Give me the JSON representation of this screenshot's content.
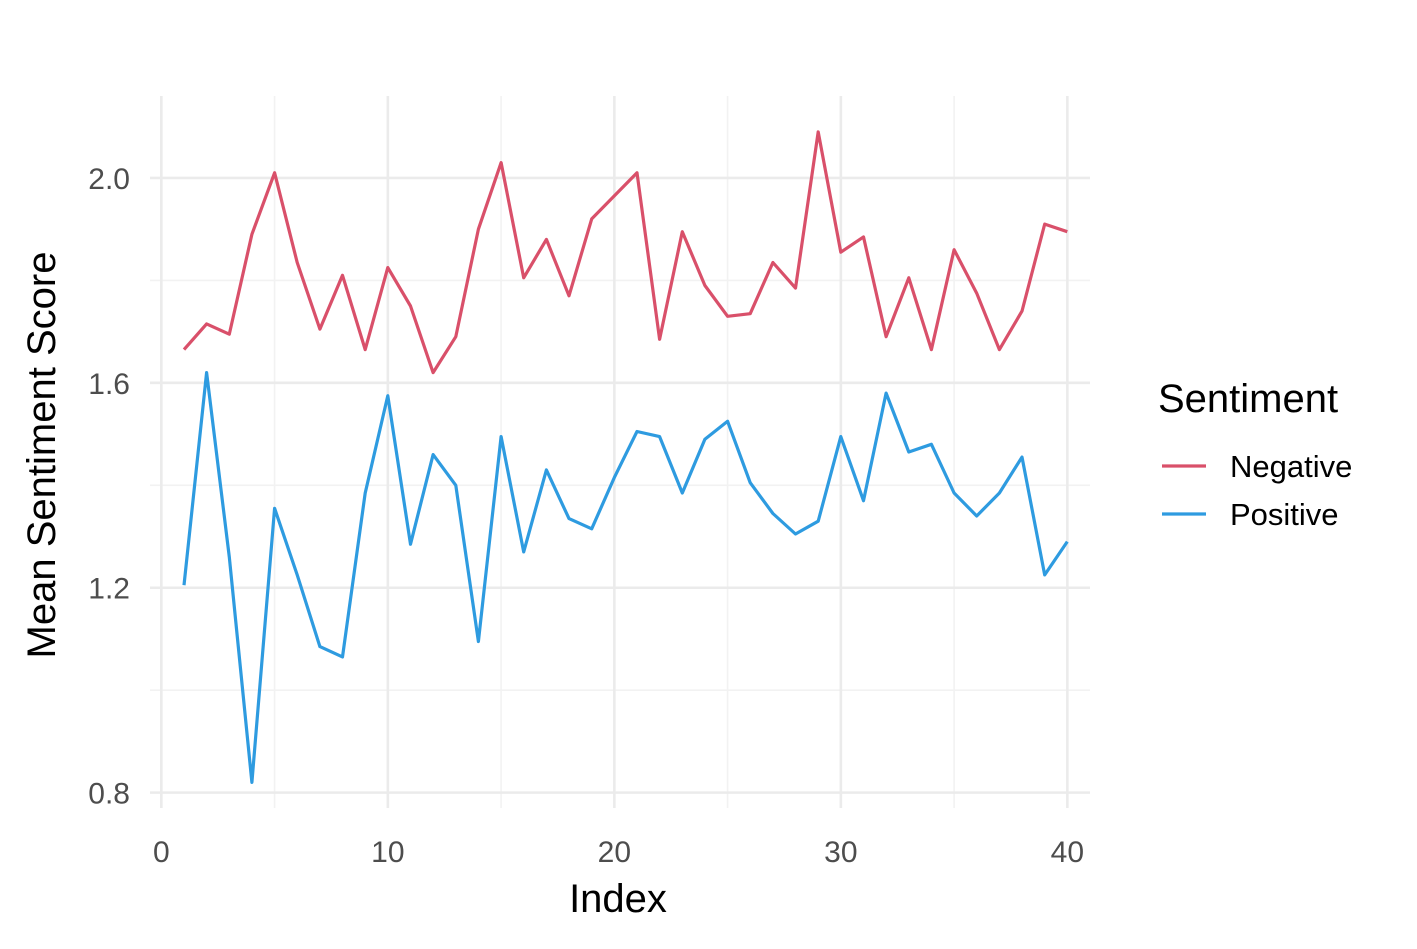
{
  "chart_data": {
    "type": "line",
    "title": "",
    "xlabel": "Index",
    "ylabel": "Mean Sentiment Score",
    "xlim": [
      -0.5,
      41
    ],
    "ylim": [
      0.77,
      2.16
    ],
    "x_ticks": [
      0,
      10,
      20,
      30,
      40
    ],
    "x_tick_labels": [
      "0",
      "10",
      "20",
      "30",
      "40"
    ],
    "y_ticks": [
      0.8,
      1.2,
      1.6,
      2.0
    ],
    "y_tick_labels": [
      "0.8",
      "1.2",
      "1.6",
      "2.0"
    ],
    "grid": true,
    "legend": {
      "title": "Sentiment",
      "placement": "right"
    },
    "x": [
      1,
      2,
      3,
      4,
      5,
      6,
      7,
      8,
      9,
      10,
      11,
      12,
      13,
      14,
      15,
      16,
      17,
      18,
      19,
      20,
      21,
      22,
      23,
      24,
      25,
      26,
      27,
      28,
      29,
      30,
      31,
      32,
      33,
      34,
      35,
      36,
      37,
      38,
      39,
      40
    ],
    "series": [
      {
        "name": "Negative",
        "color": "#D9506A",
        "values": [
          1.665,
          1.715,
          1.695,
          1.89,
          2.01,
          1.835,
          1.705,
          1.81,
          1.665,
          1.825,
          1.75,
          1.62,
          1.69,
          1.9,
          2.03,
          1.805,
          1.88,
          1.77,
          1.92,
          1.965,
          2.01,
          1.685,
          1.895,
          1.79,
          1.73,
          1.735,
          1.835,
          1.785,
          2.09,
          1.855,
          1.885,
          1.69,
          1.805,
          1.665,
          1.86,
          1.775,
          1.665,
          1.74,
          1.91,
          1.895
        ]
      },
      {
        "name": "Positive",
        "color": "#2E9BE0",
        "values": [
          1.205,
          1.62,
          1.26,
          0.82,
          1.355,
          1.225,
          1.085,
          1.065,
          1.385,
          1.575,
          1.285,
          1.46,
          1.4,
          1.095,
          1.495,
          1.27,
          1.43,
          1.335,
          1.315,
          1.415,
          1.505,
          1.495,
          1.385,
          1.49,
          1.525,
          1.405,
          1.345,
          1.305,
          1.33,
          1.495,
          1.37,
          1.58,
          1.465,
          1.48,
          1.385,
          1.34,
          1.385,
          1.455,
          1.225,
          1.29
        ]
      }
    ]
  }
}
